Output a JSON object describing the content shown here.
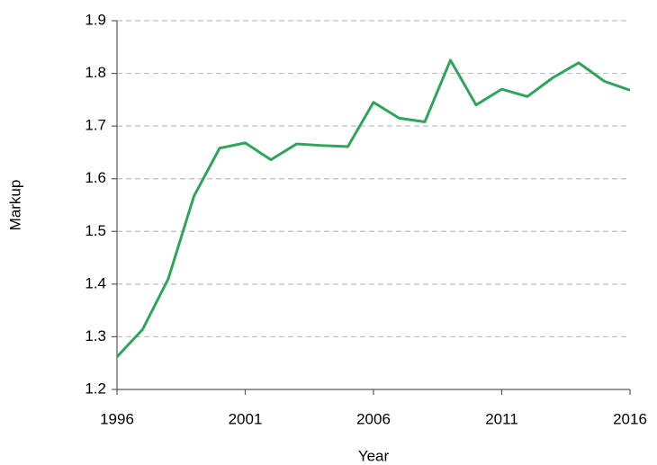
{
  "chart_data": {
    "type": "line",
    "x_label": "Year",
    "y_label": "Markup",
    "x": [
      1996,
      1997,
      1998,
      1999,
      2000,
      2001,
      2002,
      2003,
      2004,
      2005,
      2006,
      2007,
      2008,
      2009,
      2010,
      2011,
      2012,
      2013,
      2014,
      2015,
      2016
    ],
    "series": [
      {
        "color": "#2ea55b",
        "values": [
          1.262,
          1.314,
          1.41,
          1.567,
          1.658,
          1.668,
          1.636,
          1.666,
          1.663,
          1.661,
          1.745,
          1.715,
          1.708,
          1.825,
          1.74,
          1.77,
          1.756,
          1.792,
          1.82,
          1.785,
          1.768
        ]
      }
    ],
    "xlim": [
      1996,
      2016
    ],
    "xticks": [
      1996,
      2001,
      2006,
      2011,
      2016
    ],
    "ylim": [
      1.2,
      1.9
    ],
    "yticks": [
      1.2,
      1.3,
      1.4,
      1.5,
      1.6,
      1.7,
      1.8,
      1.9
    ],
    "grid": true
  }
}
